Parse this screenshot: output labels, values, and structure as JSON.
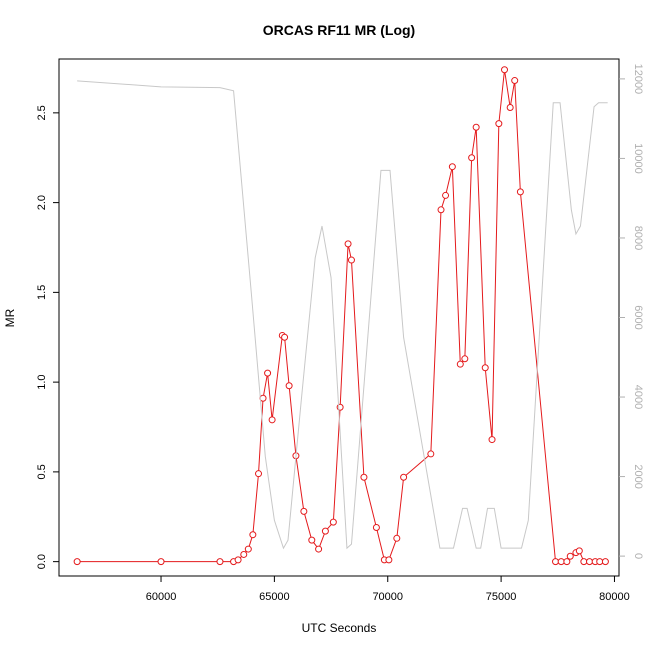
{
  "chart_data": {
    "type": "line",
    "title": "ORCAS RF11 MR (Log)",
    "xlabel": "UTC Seconds",
    "ylabel": "MR",
    "xlim": [
      55500,
      80200
    ],
    "ylim": [
      -0.08,
      2.8
    ],
    "y2lim": [
      -500,
      12500
    ],
    "x_ticks": [
      60000,
      65000,
      70000,
      75000,
      80000
    ],
    "y_ticks": [
      0.0,
      0.5,
      1.0,
      1.5,
      2.0,
      2.5
    ],
    "y_tick_labels": [
      "0.0",
      "0.5",
      "1.0",
      "1.5",
      "2.0",
      "2.5"
    ],
    "y2_ticks": [
      0,
      2000,
      4000,
      6000,
      8000,
      10000,
      12000
    ],
    "grid": false,
    "series": [
      {
        "axis": "left",
        "color": "#e41a1c",
        "marker": "open-circle",
        "points": [
          [
            56300,
            0.0
          ],
          [
            60000,
            0.0
          ],
          [
            62600,
            0.0
          ],
          [
            63200,
            0.0
          ],
          [
            63400,
            0.01
          ],
          [
            63650,
            0.04
          ],
          [
            63850,
            0.07
          ],
          [
            64050,
            0.15
          ],
          [
            64300,
            0.49
          ],
          [
            64500,
            0.91
          ],
          [
            64700,
            1.05
          ],
          [
            64900,
            0.79
          ],
          [
            65350,
            1.26
          ],
          [
            65450,
            1.25
          ],
          [
            65650,
            0.98
          ],
          [
            65950,
            0.59
          ],
          [
            66300,
            0.28
          ],
          [
            66650,
            0.12
          ],
          [
            66950,
            0.07
          ],
          [
            67250,
            0.17
          ],
          [
            67600,
            0.22
          ],
          [
            67900,
            0.86
          ],
          [
            68250,
            1.77
          ],
          [
            68400,
            1.68
          ],
          [
            68950,
            0.47
          ],
          [
            69500,
            0.19
          ],
          [
            69850,
            0.01
          ],
          [
            70050,
            0.01
          ],
          [
            70400,
            0.13
          ],
          [
            70700,
            0.47
          ],
          [
            71900,
            0.6
          ],
          [
            72350,
            1.96
          ],
          [
            72550,
            2.04
          ],
          [
            72850,
            2.2
          ],
          [
            73200,
            1.1
          ],
          [
            73400,
            1.13
          ],
          [
            73700,
            2.25
          ],
          [
            73900,
            2.42
          ],
          [
            74300,
            1.08
          ],
          [
            74600,
            0.68
          ],
          [
            74900,
            2.44
          ],
          [
            75150,
            2.74
          ],
          [
            75400,
            2.53
          ],
          [
            75600,
            2.68
          ],
          [
            75850,
            2.06
          ],
          [
            77400,
            0.0
          ],
          [
            77650,
            0.0
          ],
          [
            77900,
            0.0
          ],
          [
            78050,
            0.03
          ],
          [
            78300,
            0.05
          ],
          [
            78450,
            0.06
          ],
          [
            78650,
            0.0
          ],
          [
            78900,
            0.0
          ],
          [
            79150,
            0.0
          ],
          [
            79350,
            0.0
          ],
          [
            79600,
            0.0
          ]
        ]
      },
      {
        "axis": "right",
        "color": "#c8c8c8",
        "marker": "none",
        "points": [
          [
            56300,
            11950
          ],
          [
            60000,
            11800
          ],
          [
            62600,
            11780
          ],
          [
            63200,
            11700
          ],
          [
            64000,
            6500
          ],
          [
            64600,
            2500
          ],
          [
            65000,
            900
          ],
          [
            65400,
            200
          ],
          [
            65600,
            400
          ],
          [
            66200,
            4000
          ],
          [
            66800,
            7500
          ],
          [
            67100,
            8300
          ],
          [
            67500,
            7000
          ],
          [
            68200,
            200
          ],
          [
            68400,
            300
          ],
          [
            69700,
            9700
          ],
          [
            70100,
            9700
          ],
          [
            70700,
            5500
          ],
          [
            72300,
            200
          ],
          [
            72900,
            200
          ],
          [
            73300,
            1200
          ],
          [
            73500,
            1200
          ],
          [
            73900,
            200
          ],
          [
            74100,
            200
          ],
          [
            74400,
            1200
          ],
          [
            74700,
            1200
          ],
          [
            75000,
            200
          ],
          [
            75900,
            200
          ],
          [
            76200,
            900
          ],
          [
            77300,
            11400
          ],
          [
            77600,
            11400
          ],
          [
            78100,
            8700
          ],
          [
            78300,
            8100
          ],
          [
            78500,
            8300
          ],
          [
            79100,
            11300
          ],
          [
            79300,
            11400
          ],
          [
            79700,
            11400
          ]
        ]
      }
    ]
  }
}
